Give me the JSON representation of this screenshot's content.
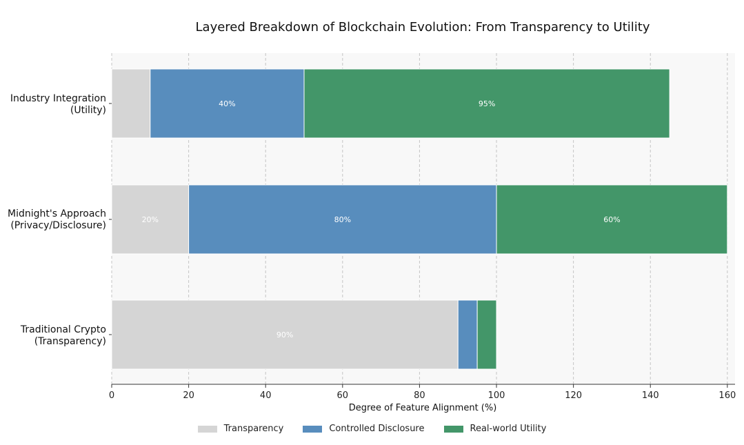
{
  "chart_data": {
    "type": "bar",
    "orientation": "horizontal",
    "stacked": true,
    "title": "Layered Breakdown of Blockchain Evolution: From Transparency to Utility",
    "xlabel": "Degree of Feature Alignment (%)",
    "ylabel": "",
    "xlim": [
      0,
      162
    ],
    "xticks": [
      0,
      20,
      40,
      60,
      80,
      100,
      120,
      140,
      160
    ],
    "grid": "vertical dashed",
    "legend_position": "bottom-center",
    "categories": [
      {
        "line1": "Traditional Crypto",
        "line2": "(Transparency)"
      },
      {
        "line1": "Midnight's Approach",
        "line2": "(Privacy/Disclosure)"
      },
      {
        "line1": "Industry Integration",
        "line2": "(Utility)"
      }
    ],
    "series": [
      {
        "name": "Transparency",
        "color": "#d5d5d5",
        "values": [
          90,
          20,
          10
        ],
        "labels": [
          "90%",
          "20%",
          ""
        ]
      },
      {
        "name": "Controlled Disclosure",
        "color": "#588dbd",
        "values": [
          5,
          80,
          40
        ],
        "labels": [
          "",
          "80%",
          "40%"
        ]
      },
      {
        "name": "Real-world Utility",
        "color": "#439669",
        "values": [
          5,
          60,
          95
        ],
        "labels": [
          "",
          "60%",
          "95%"
        ]
      }
    ]
  }
}
